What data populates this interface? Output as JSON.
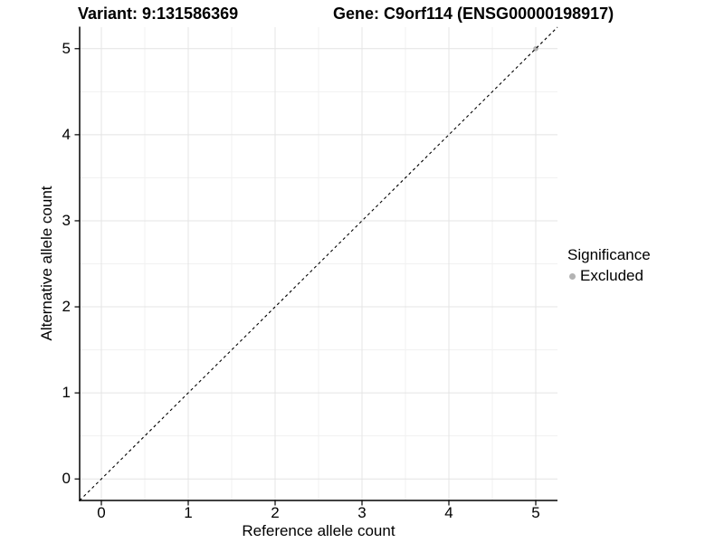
{
  "chart_data": {
    "type": "scatter",
    "title_left": "Variant: 9:131586369",
    "title_right": "Gene: C9orf114 (ENSG00000198917)",
    "xlabel": "Reference allele count",
    "ylabel": "Alternative allele count",
    "x_ticks": [
      "0",
      "1",
      "2",
      "3",
      "4",
      "5"
    ],
    "y_ticks": [
      "0",
      "1",
      "2",
      "3",
      "4",
      "5"
    ],
    "xlim": [
      -0.25,
      5.25
    ],
    "ylim": [
      -0.25,
      5.25
    ],
    "grid": {
      "major_step": 1,
      "minor_step": 0.5,
      "major_color": "#e4e4e4",
      "minor_color": "#f1f1f1"
    },
    "axis_color": "#000000",
    "reference_line": {
      "slope": 1,
      "intercept": 0,
      "style": "dashed",
      "color": "#000000"
    },
    "series": [
      {
        "name": "Excluded",
        "color": "#b3b3b3",
        "points": [
          {
            "x": 5,
            "y": 5
          }
        ]
      }
    ],
    "legend": {
      "title": "Significance",
      "position": "right",
      "entries": [
        {
          "label": "Excluded",
          "color": "#b3b3b3"
        }
      ]
    }
  }
}
